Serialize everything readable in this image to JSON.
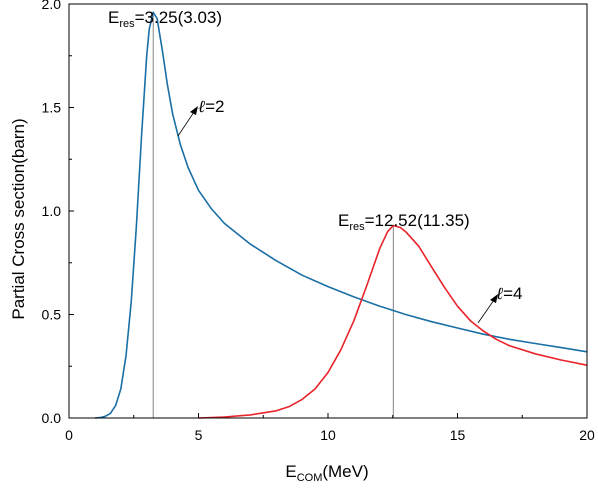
{
  "chart_data": {
    "type": "line",
    "xlabel": {
      "main": "E",
      "sub": "COM",
      "rest": "(MeV)"
    },
    "ylabel": "Partial Cross section(barn)",
    "xlim": [
      0,
      20
    ],
    "ylim": [
      0,
      2.0
    ],
    "x_ticks": [
      "0",
      "5",
      "10",
      "15",
      "20"
    ],
    "y_ticks": [
      "0.0",
      "0.5",
      "1.0",
      "1.5",
      "2.0"
    ],
    "x_tick_values": [
      0,
      5,
      10,
      15,
      20
    ],
    "y_tick_values": [
      0,
      0.5,
      1.0,
      1.5,
      2.0
    ],
    "grid": false,
    "series": [
      {
        "label_parts": {
          "ell": "ℓ",
          "rest": "=2"
        },
        "color": "#1a6fa6",
        "points": [
          [
            1.0,
            0.0
          ],
          [
            1.2,
            0.002
          ],
          [
            1.4,
            0.008
          ],
          [
            1.6,
            0.022
          ],
          [
            1.8,
            0.06
          ],
          [
            2.0,
            0.14
          ],
          [
            2.2,
            0.3
          ],
          [
            2.4,
            0.56
          ],
          [
            2.6,
            0.92
          ],
          [
            2.8,
            1.36
          ],
          [
            3.0,
            1.75
          ],
          [
            3.1,
            1.88
          ],
          [
            3.25,
            1.96
          ],
          [
            3.4,
            1.93
          ],
          [
            3.6,
            1.78
          ],
          [
            3.8,
            1.61
          ],
          [
            4.0,
            1.47
          ],
          [
            4.3,
            1.32
          ],
          [
            4.6,
            1.21
          ],
          [
            5.0,
            1.1
          ],
          [
            5.5,
            1.01
          ],
          [
            6.0,
            0.94
          ],
          [
            7.0,
            0.84
          ],
          [
            8.0,
            0.76
          ],
          [
            9.0,
            0.69
          ],
          [
            10.0,
            0.635
          ],
          [
            11.0,
            0.585
          ],
          [
            12.0,
            0.54
          ],
          [
            13.0,
            0.5
          ],
          [
            14.0,
            0.465
          ],
          [
            15.0,
            0.435
          ],
          [
            16.0,
            0.405
          ],
          [
            17.0,
            0.38
          ],
          [
            18.0,
            0.36
          ],
          [
            19.0,
            0.34
          ],
          [
            20.0,
            0.32
          ]
        ]
      },
      {
        "label_parts": {
          "ell": "ℓ",
          "rest": "=4"
        },
        "color": "#e8232a",
        "points": [
          [
            5.0,
            0.0
          ],
          [
            6.0,
            0.005
          ],
          [
            7.0,
            0.015
          ],
          [
            8.0,
            0.035
          ],
          [
            8.5,
            0.055
          ],
          [
            9.0,
            0.09
          ],
          [
            9.5,
            0.14
          ],
          [
            10.0,
            0.22
          ],
          [
            10.5,
            0.33
          ],
          [
            11.0,
            0.47
          ],
          [
            11.5,
            0.64
          ],
          [
            12.0,
            0.82
          ],
          [
            12.3,
            0.9
          ],
          [
            12.52,
            0.93
          ],
          [
            12.8,
            0.92
          ],
          [
            13.0,
            0.9
          ],
          [
            13.5,
            0.83
          ],
          [
            14.0,
            0.73
          ],
          [
            14.5,
            0.63
          ],
          [
            15.0,
            0.54
          ],
          [
            15.5,
            0.47
          ],
          [
            16.0,
            0.42
          ],
          [
            16.5,
            0.38
          ],
          [
            17.0,
            0.35
          ],
          [
            18.0,
            0.31
          ],
          [
            19.0,
            0.28
          ],
          [
            20.0,
            0.255
          ]
        ]
      }
    ],
    "peaks": [
      {
        "x": 3.25,
        "y": 1.96,
        "label_parts": {
          "main": "E",
          "sub": "res",
          "rest": "=3.25(3.03)"
        }
      },
      {
        "x": 12.52,
        "y": 0.93,
        "label_parts": {
          "main": "E",
          "sub": "res",
          "rest": "=12.52(11.35)"
        }
      }
    ]
  }
}
